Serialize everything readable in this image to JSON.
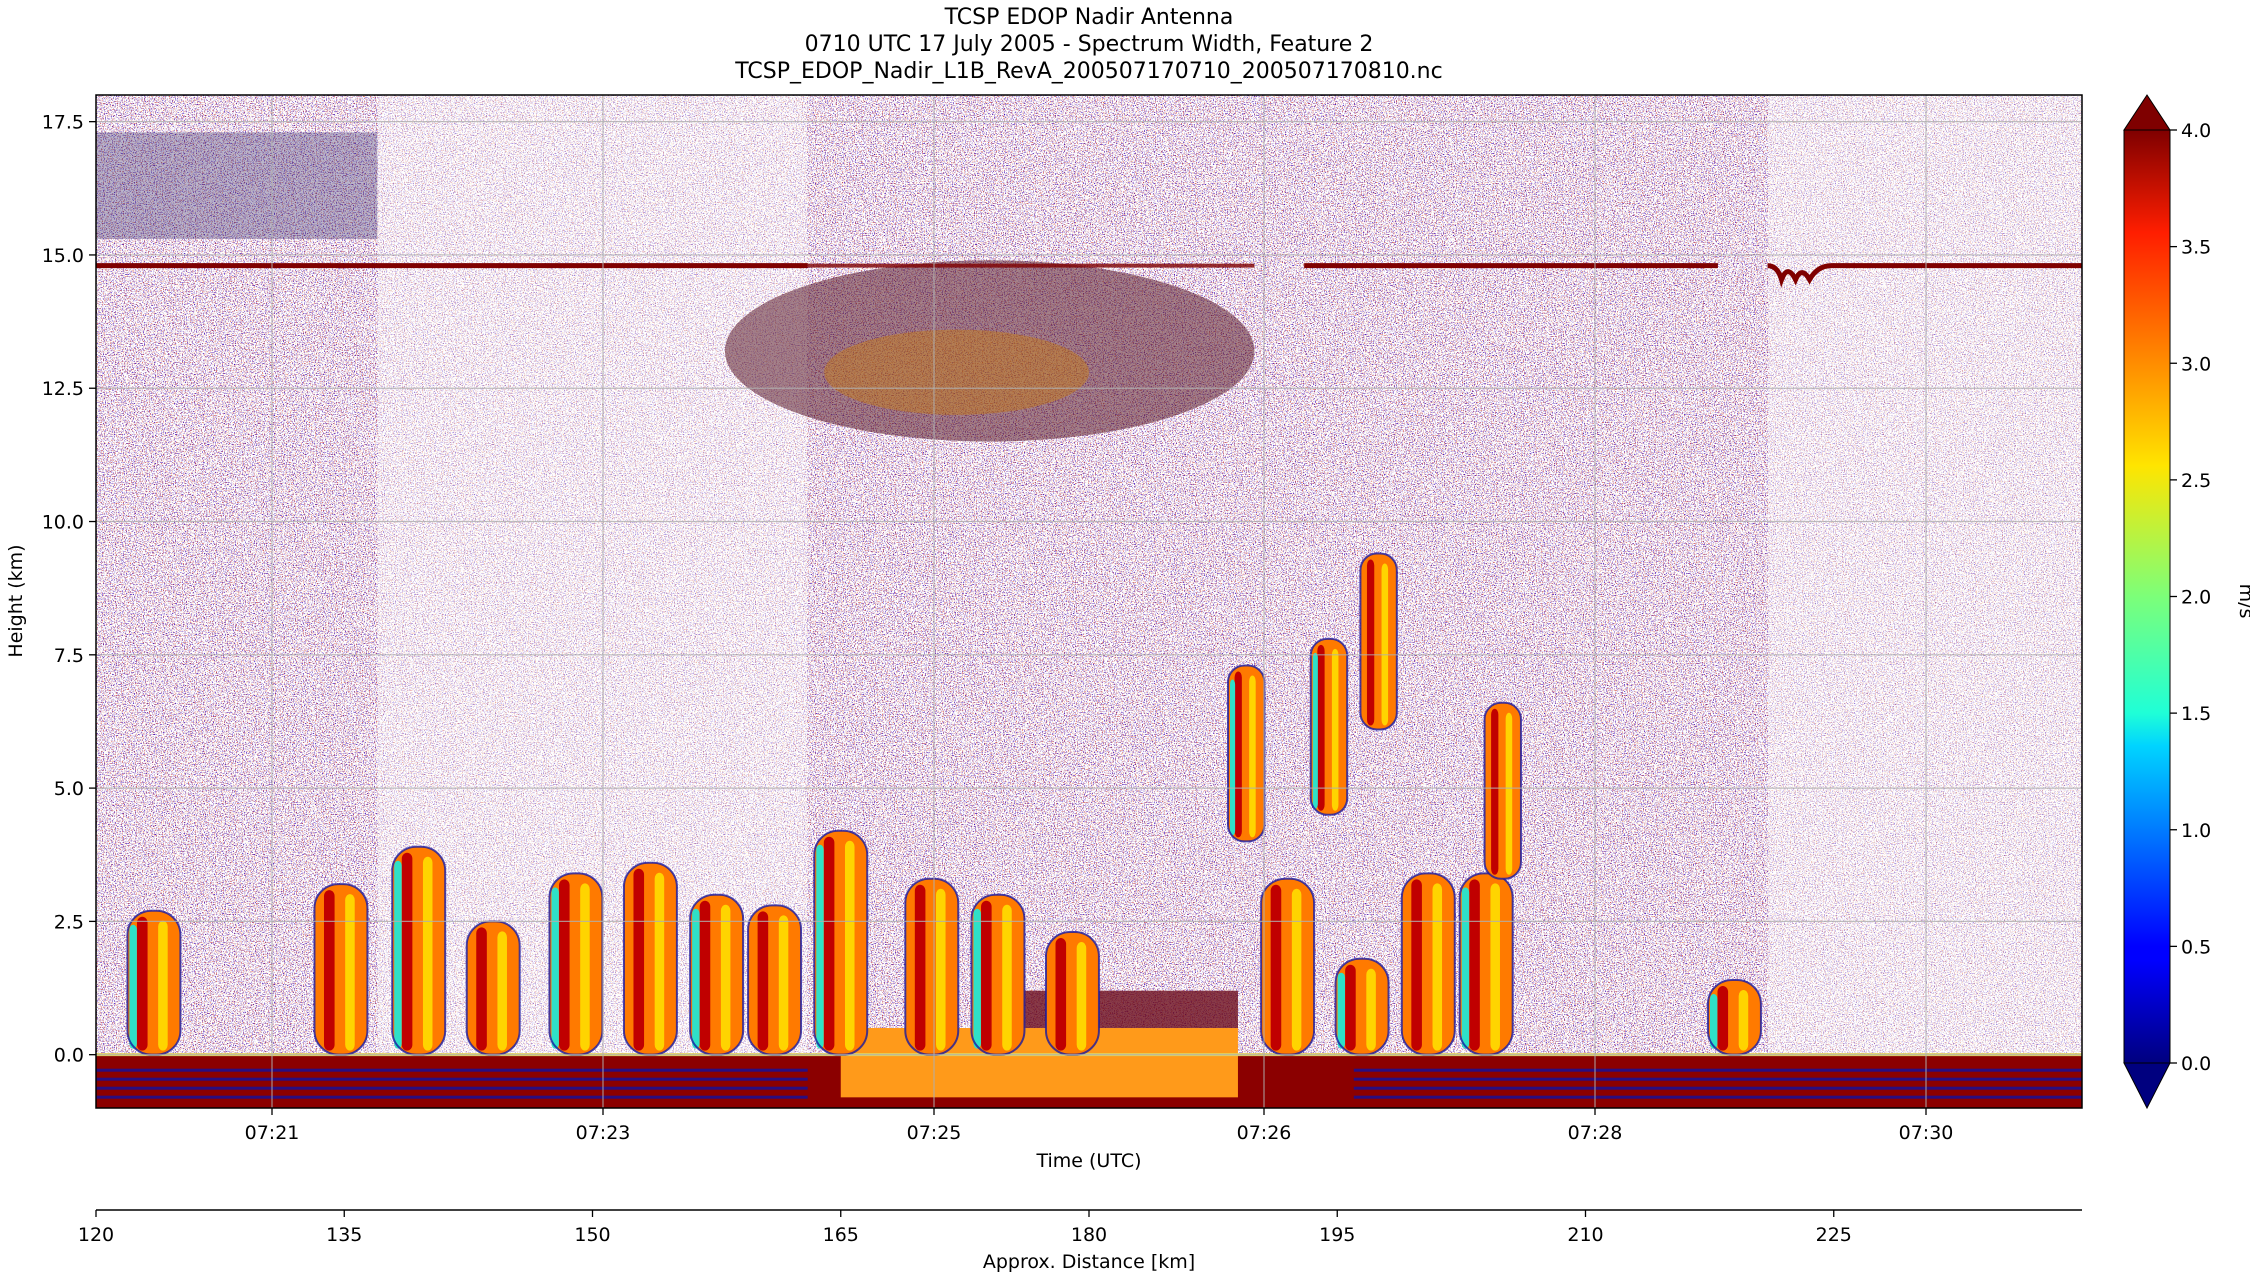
{
  "chart_data": {
    "type": "heatmap",
    "title_lines": [
      "TCSP EDOP Nadir Antenna",
      "0710 UTC 17 July 2005 - Spectrum Width, Feature 2",
      "TCSP_EDOP_Nadir_L1B_RevA_200507170710_200507170810.nc"
    ],
    "xlabel": "Time (UTC)",
    "ylabel": "Height (km)",
    "x2label": "Approx. Distance [km]",
    "x_ticks": [
      "07:21",
      "07:23",
      "07:25",
      "07:26",
      "07:28",
      "07:30"
    ],
    "y_ticks": [
      0.0,
      2.5,
      5.0,
      7.5,
      10.0,
      12.5,
      15.0,
      17.5
    ],
    "ylim": [
      -1.0,
      18.0
    ],
    "x2_ticks": [
      120,
      135,
      150,
      165,
      180,
      195,
      210,
      225
    ],
    "x2lim": [
      120,
      240
    ],
    "grid": true,
    "colorbar": {
      "label": "m/s",
      "ticks": [
        0.0,
        0.5,
        1.0,
        1.5,
        2.0,
        2.5,
        3.0,
        3.5,
        4.0
      ],
      "vmin": 0.0,
      "vmax": 4.0,
      "extend": "both",
      "colormap": "jet"
    },
    "features": {
      "tropopause_layer_km": 14.8,
      "surface_km": 0.0,
      "anvil_km": [
        11.5,
        14.5
      ],
      "convective_cells": [
        {
          "x_km": 123.5,
          "top_km": 2.7
        },
        {
          "x_km": 134.8,
          "top_km": 3.2
        },
        {
          "x_km": 139.5,
          "top_km": 3.9
        },
        {
          "x_km": 144.0,
          "top_km": 2.5
        },
        {
          "x_km": 149.0,
          "top_km": 3.4
        },
        {
          "x_km": 153.5,
          "top_km": 3.6
        },
        {
          "x_km": 157.5,
          "top_km": 3.0
        },
        {
          "x_km": 161.0,
          "top_km": 2.8
        },
        {
          "x_km": 165.0,
          "top_km": 4.2
        },
        {
          "x_km": 170.5,
          "top_km": 3.3
        },
        {
          "x_km": 174.5,
          "top_km": 3.0
        },
        {
          "x_km": 179.0,
          "top_km": 2.3
        },
        {
          "x_km": 189.5,
          "top_km": 7.3
        },
        {
          "x_km": 192.0,
          "top_km": 3.3
        },
        {
          "x_km": 194.5,
          "top_km": 7.8
        },
        {
          "x_km": 197.5,
          "top_km": 9.4
        },
        {
          "x_km": 196.5,
          "top_km": 1.8
        },
        {
          "x_km": 200.5,
          "top_km": 3.4
        },
        {
          "x_km": 204.0,
          "top_km": 3.4
        },
        {
          "x_km": 205.0,
          "top_km": 6.6
        },
        {
          "x_km": 219.0,
          "top_km": 1.4
        }
      ]
    }
  }
}
